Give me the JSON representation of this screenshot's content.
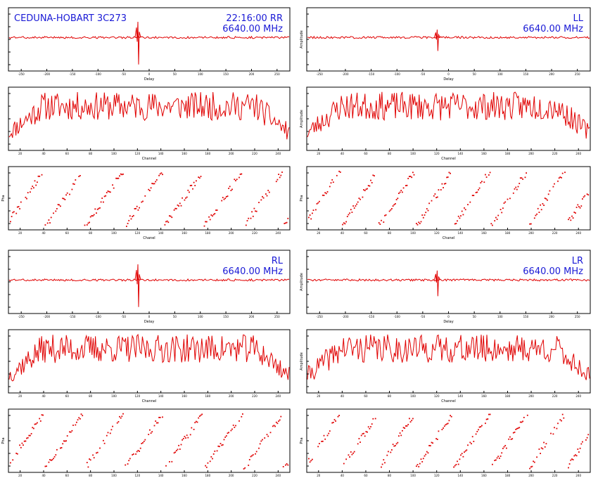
{
  "colors": {
    "trace": "#e00000",
    "header_text": "#1a1ad6",
    "frame": "#000000"
  },
  "groups": [
    {
      "panels": [
        {
          "id": "rr",
          "header": {
            "left": "CEDUNA-HOBART 3C273",
            "pol": "22:16:00  RR",
            "freq": "6640.00 MHz"
          },
          "delay": {
            "xlabel": "Delay",
            "ylabel": "",
            "spike_at": 0.46,
            "spike_amp": 1.0,
            "xticks": [
              "-250",
              "-200",
              "-150",
              "-100",
              "-50",
              "0",
              "50",
              "100",
              "150",
              "200",
              "250"
            ]
          },
          "amplitude": {
            "xlabel": "Channel",
            "ylabel": "",
            "seed": 11,
            "xticks": [
              "20",
              "40",
              "60",
              "80",
              "100",
              "120",
              "140",
              "160",
              "180",
              "200",
              "220",
              "240"
            ]
          },
          "phase": {
            "xlabel": "Chanel",
            "ylabel": "Pha",
            "cycles": 7.0,
            "seed": 3,
            "xticks": [
              "20",
              "40",
              "60",
              "80",
              "100",
              "120",
              "140",
              "160",
              "180",
              "200",
              "220",
              "240"
            ]
          }
        },
        {
          "id": "ll",
          "header": {
            "left": "",
            "pol": "LL",
            "freq": "6640.00 MHz"
          },
          "delay": {
            "xlabel": "Delay",
            "ylabel": "Amplitude",
            "spike_at": 0.46,
            "spike_amp": 0.5,
            "xticks": [
              "-250",
              "-200",
              "-150",
              "-100",
              "-50",
              "0",
              "50",
              "100",
              "150",
              "200",
              "250"
            ]
          },
          "amplitude": {
            "xlabel": "Channel",
            "ylabel": "Amplitude",
            "seed": 23,
            "xticks": [
              "20",
              "40",
              "60",
              "80",
              "100",
              "120",
              "140",
              "160",
              "180",
              "200",
              "220",
              "240"
            ]
          },
          "phase": {
            "xlabel": "Chanel",
            "ylabel": "Pha",
            "cycles": 7.5,
            "seed": 5,
            "xticks": [
              "20",
              "40",
              "60",
              "80",
              "100",
              "120",
              "140",
              "160",
              "180",
              "200",
              "220",
              "240"
            ]
          }
        }
      ]
    },
    {
      "panels": [
        {
          "id": "rl",
          "header": {
            "left": "",
            "pol": "RL",
            "freq": "6640.00 MHz"
          },
          "delay": {
            "xlabel": "Delay",
            "ylabel": "",
            "spike_at": 0.46,
            "spike_amp": 1.0,
            "xticks": [
              "-250",
              "-200",
              "-150",
              "-100",
              "-50",
              "0",
              "50",
              "100",
              "150",
              "200",
              "250"
            ]
          },
          "amplitude": {
            "xlabel": "Channel",
            "ylabel": "",
            "seed": 37,
            "xticks": [
              "20",
              "40",
              "60",
              "80",
              "100",
              "120",
              "140",
              "160",
              "180",
              "200",
              "220",
              "240"
            ]
          },
          "phase": {
            "xlabel": "Chanel",
            "ylabel": "Pha",
            "cycles": 7.0,
            "seed": 7,
            "xticks": [
              "20",
              "40",
              "60",
              "80",
              "100",
              "120",
              "140",
              "160",
              "180",
              "200",
              "220",
              "240"
            ]
          }
        },
        {
          "id": "lr",
          "header": {
            "left": "",
            "pol": "LR",
            "freq": "6640.00 MHz"
          },
          "delay": {
            "xlabel": "Delay",
            "ylabel": "Amplitude",
            "spike_at": 0.46,
            "spike_amp": 0.6,
            "xticks": [
              "-250",
              "-200",
              "-150",
              "-100",
              "-50",
              "0",
              "50",
              "100",
              "150",
              "200",
              "250"
            ]
          },
          "amplitude": {
            "xlabel": "Channel",
            "ylabel": "Amplitude",
            "seed": 41,
            "xticks": [
              "20",
              "40",
              "60",
              "80",
              "100",
              "120",
              "140",
              "160",
              "180",
              "200",
              "220",
              "240"
            ]
          },
          "phase": {
            "xlabel": "Chanel",
            "ylabel": "Pha",
            "cycles": 7.5,
            "seed": 9,
            "xticks": [
              "20",
              "40",
              "60",
              "80",
              "100",
              "120",
              "140",
              "160",
              "180",
              "200",
              "220",
              "240"
            ]
          }
        }
      ]
    }
  ],
  "chart_data": [
    {
      "type": "line",
      "title": "CEDUNA-HOBART 3C273  22:16:00  RR  6640.00 MHz",
      "xlabel": "Delay",
      "ylabel": "",
      "note": "delay spectrum, sharp peak near zero delay"
    },
    {
      "type": "line",
      "title": "RR",
      "xlabel": "Channel",
      "ylabel": "",
      "note": "noisy amplitude vs channel, bandpass shaped"
    },
    {
      "type": "scatter",
      "title": "RR",
      "xlabel": "Chanel",
      "ylabel": "Pha",
      "note": "phase wrapping diagonally across channels"
    },
    {
      "type": "line",
      "title": "LL  6640.00 MHz",
      "xlabel": "Delay",
      "ylabel": "Amplitude"
    },
    {
      "type": "line",
      "title": "LL",
      "xlabel": "Channel",
      "ylabel": "Amplitude"
    },
    {
      "type": "scatter",
      "title": "LL",
      "xlabel": "Chanel",
      "ylabel": "Pha"
    },
    {
      "type": "line",
      "title": "RL  6640.00 MHz",
      "xlabel": "Delay",
      "ylabel": ""
    },
    {
      "type": "line",
      "title": "RL",
      "xlabel": "Channel",
      "ylabel": ""
    },
    {
      "type": "scatter",
      "title": "RL",
      "xlabel": "Chanel",
      "ylabel": "Pha"
    },
    {
      "type": "line",
      "title": "LR  6640.00 MHz",
      "xlabel": "Delay",
      "ylabel": "Amplitude"
    },
    {
      "type": "line",
      "title": "LR",
      "xlabel": "Channel",
      "ylabel": "Amplitude"
    },
    {
      "type": "scatter",
      "title": "LR",
      "xlabel": "Chanel",
      "ylabel": "Pha"
    }
  ]
}
